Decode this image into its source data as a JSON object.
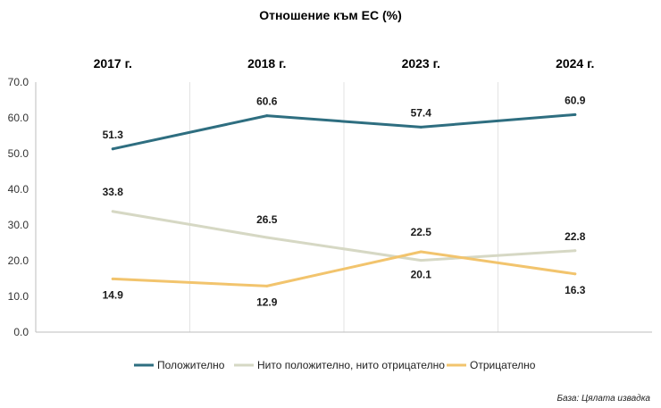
{
  "chart_data": {
    "type": "line",
    "title": "Отношение към ЕС (%)",
    "categories": [
      "2017 г.",
      "2018 г.",
      "2023 г.",
      "2024 г."
    ],
    "y_ticks": [
      "0.0",
      "10.0",
      "20.0",
      "30.0",
      "40.0",
      "50.0",
      "60.0",
      "70.0"
    ],
    "ylim": [
      0,
      70
    ],
    "grid": "vertical",
    "legend_position": "bottom",
    "series": [
      {
        "name": "Положително",
        "values": [
          51.3,
          60.6,
          57.4,
          60.9
        ],
        "labels": [
          "51.3",
          "60.6",
          "57.4",
          "60.9"
        ],
        "color": "#2e6e80"
      },
      {
        "name": "Нито положително, нито отрицателно",
        "values": [
          33.8,
          26.5,
          20.1,
          22.8
        ],
        "labels": [
          "33.8",
          "26.5",
          "20.1",
          "22.8"
        ],
        "color": "#d6d8c4"
      },
      {
        "name": "Отрицателно",
        "values": [
          14.9,
          12.9,
          22.5,
          16.3
        ],
        "labels": [
          "14.9",
          "12.9",
          "22.5",
          "16.3"
        ],
        "color": "#f2c46d"
      }
    ],
    "source": "База: Цялата извадка"
  }
}
